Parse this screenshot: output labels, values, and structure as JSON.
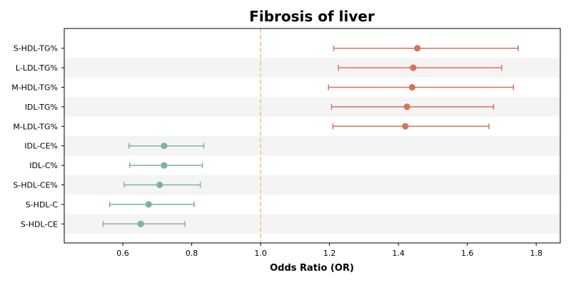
{
  "chart_data": {
    "type": "forest",
    "title": "Fibrosis of liver",
    "xlabel": "Odds Ratio (OR)",
    "xlim": [
      0.43,
      1.87
    ],
    "xticks": [
      "0.6",
      "0.8",
      "1.0",
      "1.2",
      "1.4",
      "1.6",
      "1.8"
    ],
    "reference_line": 1.0,
    "colors": {
      "positive": "#d9725a",
      "negative": "#7db598",
      "reference": "#f5c57a",
      "band": "#f4f4f4"
    },
    "rows": [
      {
        "label": "S-HDL-TG%",
        "or": 1.455,
        "lo": 1.212,
        "hi": 1.748
      },
      {
        "label": "L-LDL-TG%",
        "or": 1.443,
        "lo": 1.226,
        "hi": 1.7
      },
      {
        "label": "M-HDL-TG%",
        "or": 1.44,
        "lo": 1.197,
        "hi": 1.734
      },
      {
        "label": "IDL-TG%",
        "or": 1.425,
        "lo": 1.206,
        "hi": 1.676
      },
      {
        "label": "M-LDL-TG%",
        "or": 1.42,
        "lo": 1.21,
        "hi": 1.663
      },
      {
        "label": "IDL-CE%",
        "or": 0.72,
        "lo": 0.618,
        "hi": 0.835
      },
      {
        "label": "IDL-C%",
        "or": 0.72,
        "lo": 0.62,
        "hi": 0.831
      },
      {
        "label": "S-HDL-CE%",
        "or": 0.707,
        "lo": 0.604,
        "hi": 0.825
      },
      {
        "label": "S-HDL-C",
        "or": 0.675,
        "lo": 0.562,
        "hi": 0.807
      },
      {
        "label": "S-HDL-CE",
        "or": 0.652,
        "lo": 0.543,
        "hi": 0.78
      }
    ]
  }
}
